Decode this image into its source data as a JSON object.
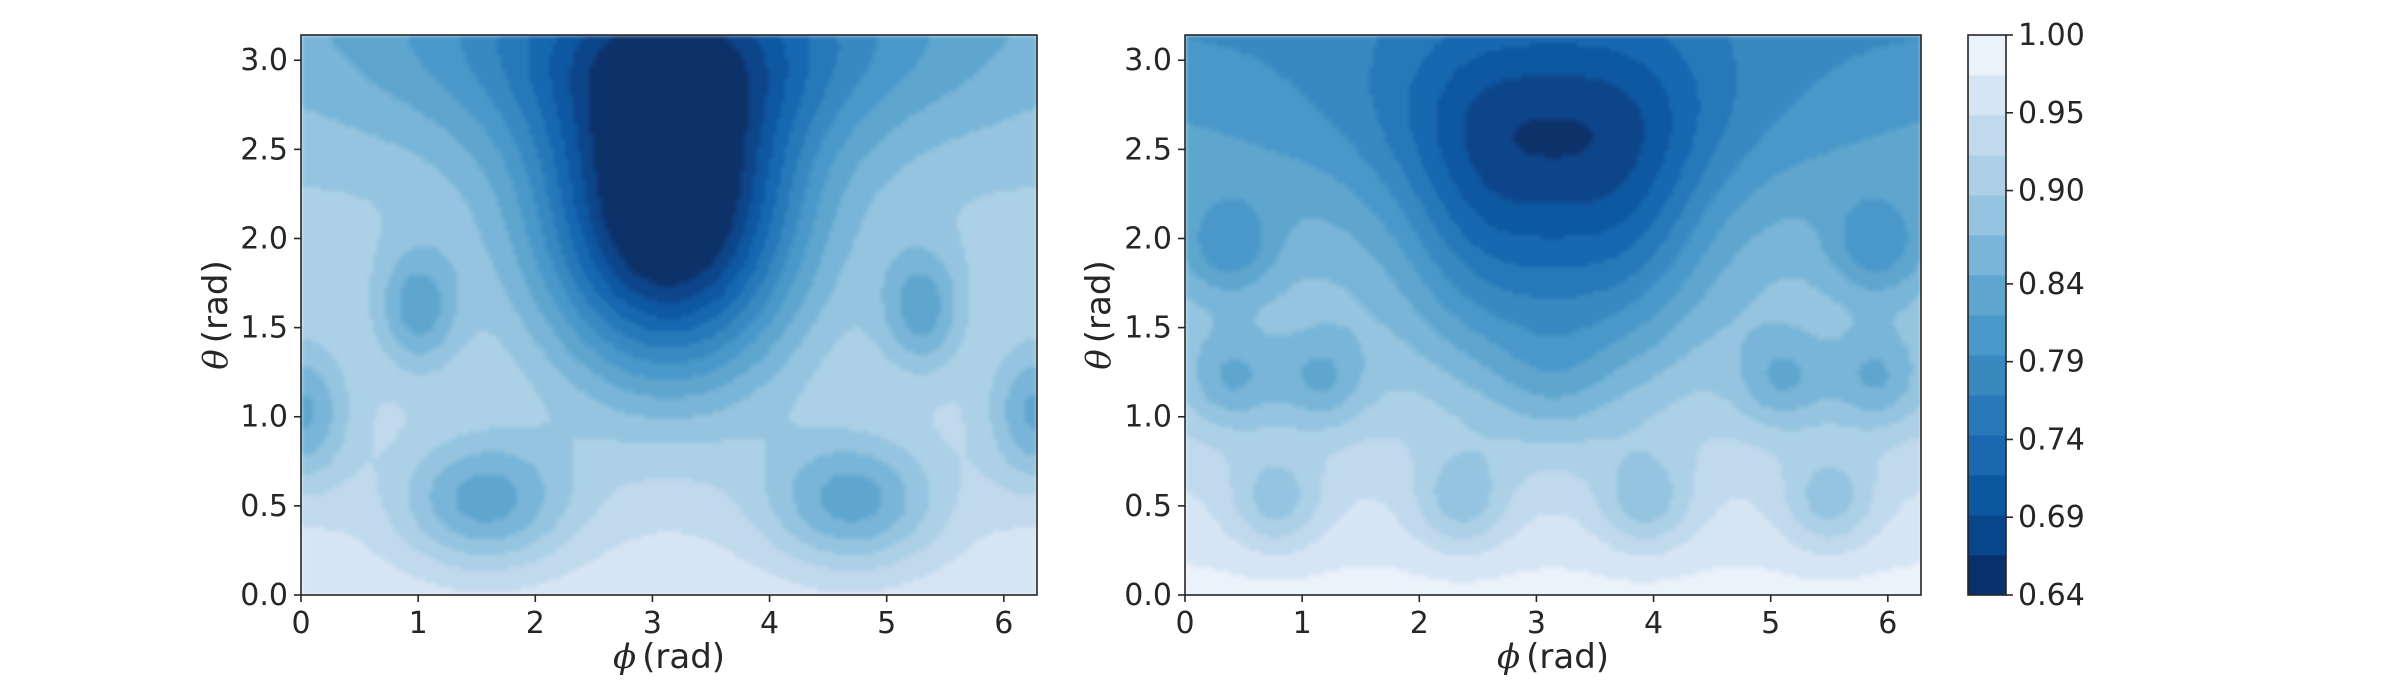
{
  "chart_data": [
    {
      "type": "heatmap",
      "subtype": "filled-contour",
      "xlabel_symbol": "ϕ",
      "xlabel_unit": "(rad)",
      "ylabel_symbol": "θ",
      "ylabel_unit": "(rad)",
      "xlim": [
        0,
        6.283
      ],
      "ylim": [
        0,
        3.1416
      ],
      "xticks": [
        0,
        1,
        2,
        3,
        4,
        5,
        6
      ],
      "xtick_labels": [
        "0",
        "1",
        "2",
        "3",
        "4",
        "5",
        "6"
      ],
      "yticks": [
        0.0,
        0.5,
        1.0,
        1.5,
        2.0,
        2.5,
        3.0
      ],
      "ytick_labels": [
        "0.0",
        "0.5",
        "1.0",
        "1.5",
        "2.0",
        "2.5",
        "3.0"
      ],
      "field": "panel_a"
    },
    {
      "type": "heatmap",
      "subtype": "filled-contour",
      "xlabel_symbol": "ϕ",
      "xlabel_unit": "(rad)",
      "ylabel_symbol": "θ",
      "ylabel_unit": "(rad)",
      "xlim": [
        0,
        6.283
      ],
      "ylim": [
        0,
        3.1416
      ],
      "xticks": [
        0,
        1,
        2,
        3,
        4,
        5,
        6
      ],
      "xtick_labels": [
        "0",
        "1",
        "2",
        "3",
        "4",
        "5",
        "6"
      ],
      "yticks": [
        0.0,
        0.5,
        1.0,
        1.5,
        2.0,
        2.5,
        3.0
      ],
      "ytick_labels": [
        "0.0",
        "0.5",
        "1.0",
        "1.5",
        "2.0",
        "2.5",
        "3.0"
      ],
      "field": "panel_b"
    }
  ],
  "colorbar": {
    "min": 0.64,
    "max": 1.0,
    "levels": 14,
    "tick_values": [
      0.64,
      0.69,
      0.74,
      0.79,
      0.84,
      0.9,
      0.95,
      1.0
    ],
    "tick_labels": [
      "0.64",
      "0.69",
      "0.74",
      "0.79",
      "0.84",
      "0.90",
      "0.95",
      "1.00"
    ],
    "colormap": "Blues_r",
    "colors": [
      "#08306b",
      "#08458a",
      "#0b58a0",
      "#1968b0",
      "#2879b9",
      "#3989c1",
      "#4a98c9",
      "#5ea6cf",
      "#78b5d8",
      "#94c4df",
      "#acd0e6",
      "#c1d9ed",
      "#d6e5f4",
      "#eaf2fb"
    ]
  }
}
